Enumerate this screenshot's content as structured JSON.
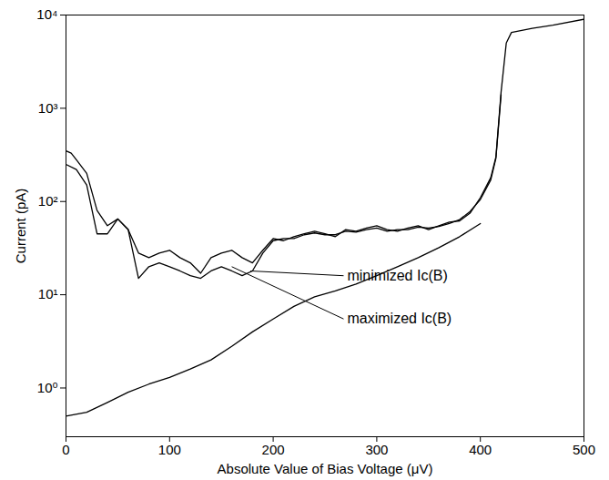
{
  "chart_data": {
    "type": "line",
    "x_label": "Absolute Value of Bias Voltage (μV)",
    "y_label": "Current (pA)",
    "log": "y",
    "grid": false,
    "xlim": [
      0,
      500
    ],
    "xticks": [
      0,
      100,
      200,
      300,
      400,
      500
    ],
    "ylim": [
      0.3,
      10000
    ],
    "yticks": [
      {
        "value": 1,
        "label": "10⁰"
      },
      {
        "value": 10,
        "label": "10¹"
      },
      {
        "value": 100,
        "label": "10²"
      },
      {
        "value": 1000,
        "label": "10³"
      },
      {
        "value": 10000,
        "label": "10⁴"
      }
    ],
    "series": [
      {
        "color": "#000000",
        "x": [
          0,
          5,
          10,
          20,
          30,
          40,
          50,
          60,
          70,
          80,
          90,
          100,
          110,
          120,
          130,
          140,
          150,
          160,
          170,
          180,
          190,
          200,
          210,
          220,
          230,
          240,
          250,
          260,
          270,
          280,
          290,
          300,
          310,
          320,
          330,
          340,
          350,
          360,
          370,
          380,
          390,
          400,
          410,
          415,
          420,
          425,
          430,
          450,
          470,
          500
        ],
        "values": [
          350,
          330,
          280,
          200,
          80,
          55,
          65,
          50,
          28,
          25,
          28,
          30,
          25,
          22,
          17,
          25,
          28,
          30,
          25,
          22,
          30,
          40,
          38,
          42,
          45,
          48,
          45,
          42,
          50,
          48,
          52,
          55,
          50,
          48,
          52,
          55,
          50,
          55,
          60,
          62,
          75,
          110,
          180,
          300,
          1500,
          5000,
          6500,
          7200,
          7800,
          9000
        ]
      },
      {
        "color": "#000000",
        "x": [
          0,
          10,
          20,
          30,
          40,
          50,
          60,
          70,
          80,
          90,
          100,
          110,
          120,
          130,
          140,
          150,
          160,
          170,
          180,
          190,
          200,
          210,
          220,
          230,
          240,
          250,
          260,
          270,
          280,
          290,
          300,
          310,
          320,
          330,
          340,
          350,
          360,
          370,
          380,
          390,
          400,
          410,
          415,
          420
        ],
        "values": [
          250,
          220,
          150,
          45,
          45,
          65,
          50,
          15,
          20,
          22,
          20,
          18,
          16,
          15,
          18,
          20,
          18,
          16,
          18,
          28,
          38,
          40,
          40,
          44,
          46,
          44,
          44,
          48,
          47,
          50,
          52,
          48,
          50,
          50,
          53,
          52,
          54,
          58,
          64,
          78,
          105,
          170,
          290,
          1400
        ]
      },
      {
        "color": "#000000",
        "x": [
          0,
          20,
          40,
          60,
          80,
          100,
          120,
          140,
          160,
          180,
          200,
          220,
          240,
          260,
          280,
          300,
          320,
          340,
          360,
          380,
          400
        ],
        "values": [
          0.5,
          0.55,
          0.7,
          0.9,
          1.1,
          1.3,
          1.6,
          2,
          2.8,
          4,
          5.5,
          7.5,
          9.5,
          11,
          13,
          16,
          20,
          25,
          32,
          42,
          58
        ]
      }
    ],
    "annotations": [
      {
        "text": "minimized Ic(B)",
        "x": 268,
        "y": 16,
        "point_x": 178,
        "point_y": 18
      },
      {
        "text": "maximized Ic(B)",
        "x": 268,
        "y": 5.5,
        "point_x": 160,
        "point_y": 20
      }
    ]
  }
}
